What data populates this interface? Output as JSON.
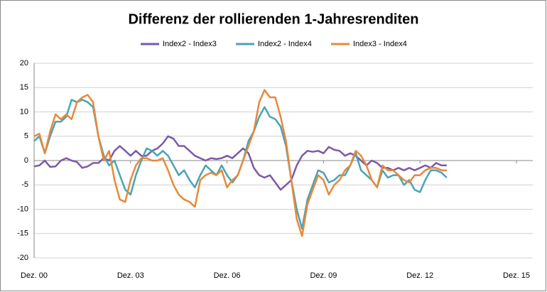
{
  "chart_data": {
    "type": "line",
    "title": "Differenz der rollierenden 1-Jahresrenditen",
    "x": [
      0,
      2,
      4,
      6,
      8,
      10,
      12,
      14,
      16,
      18,
      20,
      22,
      24,
      26,
      28,
      30,
      32,
      34,
      36,
      38,
      40,
      42,
      44,
      46,
      48,
      50,
      52,
      54,
      56,
      58,
      60,
      62,
      64,
      66,
      68,
      70,
      72,
      74,
      76,
      78,
      80,
      82,
      84,
      86,
      88,
      90,
      92,
      94,
      96,
      98,
      100,
      102,
      104,
      106,
      108,
      110,
      112,
      114,
      116,
      118,
      120,
      122,
      124,
      126,
      128,
      130,
      132,
      134,
      136,
      138,
      140,
      142,
      144,
      146,
      148,
      150,
      152,
      154
    ],
    "series": [
      {
        "name": "Index2 - Index3",
        "color": "#7b5aa6",
        "values": [
          -1.2,
          -1,
          0,
          -1.3,
          -1.2,
          0,
          0.5,
          0,
          -0.3,
          -1.5,
          -1.2,
          -0.5,
          -0.5,
          0.5,
          0,
          2,
          3,
          2,
          1,
          2,
          1,
          1,
          2,
          2.5,
          3.5,
          5,
          4.5,
          3,
          3,
          2,
          1,
          0.5,
          0,
          0.5,
          0.3,
          0.5,
          1,
          0.5,
          1.5,
          2.5,
          1.5,
          -1.5,
          -3,
          -3.5,
          -3,
          -4.5,
          -6,
          -5,
          -4,
          -1,
          1,
          2,
          1.8,
          2,
          1.5,
          2.8,
          2.2,
          2,
          1,
          1.5,
          1,
          0,
          -1,
          0,
          -0.5,
          -1.5,
          -1.5,
          -2,
          -1.5,
          -2,
          -1.5,
          -2,
          -1.5,
          -1,
          -1.5,
          -0.5,
          -1,
          -1
        ]
      },
      {
        "name": "Index2 - Index4",
        "color": "#4aa3b5",
        "values": [
          4,
          5,
          1.5,
          5,
          8,
          8,
          9,
          12.5,
          12,
          12.5,
          12,
          11,
          5,
          1,
          -1,
          0,
          -3,
          -6,
          -7,
          -3,
          0,
          2.5,
          2,
          1,
          2,
          1,
          -1,
          -3,
          -2,
          -4,
          -5.5,
          -3,
          -1,
          -2,
          -3,
          -1,
          -3,
          -4.5,
          -3,
          0,
          4,
          6,
          9,
          11,
          9,
          8.5,
          7,
          3,
          -4,
          -10,
          -14,
          -8,
          -5,
          -2,
          -2.5,
          -4.5,
          -4,
          -3,
          -3,
          -1,
          1.5,
          -2,
          -3,
          -4,
          -5.5,
          -2,
          -3.5,
          -3,
          -3,
          -5,
          -4,
          -6,
          -6.5,
          -4,
          -2,
          -2,
          -2.5,
          -3.5
        ]
      },
      {
        "name": "Index3 - Index4",
        "color": "#e8893a",
        "values": [
          5,
          5.5,
          1.5,
          6,
          9.5,
          8.5,
          9.5,
          8.5,
          12,
          13,
          13.5,
          12,
          5,
          0,
          2,
          -4,
          -8,
          -8.5,
          -4,
          -1,
          0.5,
          0.5,
          0,
          0,
          0.5,
          -2,
          -5,
          -7,
          -8,
          -8.5,
          -9.5,
          -4,
          -3,
          -2.5,
          -3,
          -2,
          -5.5,
          -4,
          -3,
          0,
          3,
          6,
          12,
          14.5,
          13,
          13,
          9,
          4,
          -4,
          -12,
          -15.5,
          -9,
          -6,
          -3,
          -4,
          -7,
          -5,
          -4,
          -2,
          -1,
          2,
          1,
          -1,
          -4,
          -5.5,
          -1,
          -2,
          -2,
          -3,
          -4,
          -4.5,
          -3,
          -3,
          -2,
          -1.5,
          -1.5,
          -2,
          -2
        ]
      }
    ],
    "xlim": [
      0,
      180
    ],
    "xticks": [
      {
        "value": 0,
        "label": "Dez. 00"
      },
      {
        "value": 36,
        "label": "Dez. 03"
      },
      {
        "value": 72,
        "label": "Dez. 06"
      },
      {
        "value": 108,
        "label": "Dez. 09"
      },
      {
        "value": 144,
        "label": "Dez. 12"
      },
      {
        "value": 180,
        "label": "Dez. 15"
      }
    ],
    "ylim": [
      -20,
      20
    ],
    "yticks": [
      -20,
      -15,
      -10,
      -5,
      0,
      5,
      10,
      15,
      20
    ],
    "grid": true,
    "legend": "top"
  }
}
